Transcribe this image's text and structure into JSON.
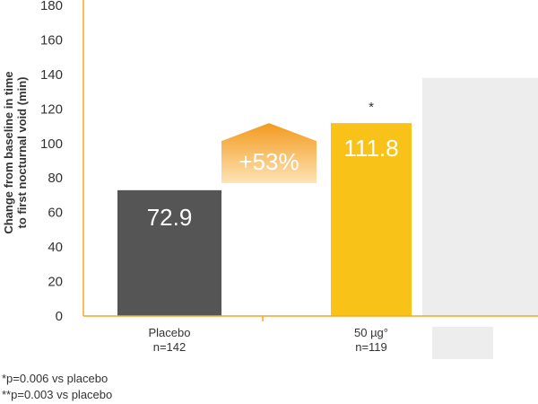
{
  "chart_data": {
    "type": "bar",
    "ylabel": [
      "Change from baseline in time",
      "to first nocturnal void (min)"
    ],
    "ylim": [
      0,
      180
    ],
    "yticks": [
      0,
      20,
      40,
      60,
      80,
      100,
      120,
      140,
      160,
      180
    ],
    "categories": [
      {
        "lines": [
          "Placebo",
          "n=142"
        ]
      },
      {
        "lines": [
          "50 µg°",
          "n=119"
        ]
      },
      {
        "lines": []
      }
    ],
    "values": [
      72.9,
      111.8,
      138
    ],
    "value_labels": [
      "72.9",
      "111.8",
      ""
    ],
    "significance": [
      "",
      "*",
      ""
    ],
    "annotation": {
      "text": "+53%",
      "from": 72.9,
      "to": 111.8
    },
    "colors": {
      "bars": [
        "#555555",
        "#f9c219",
        "#ededed"
      ],
      "axis": "#f5a623",
      "arrow_top": "#f39a1e",
      "arrow_bottom": "#fde3b5"
    }
  },
  "footnotes": [
    "*p=0.006 vs placebo",
    "**p=0.003 vs placebo"
  ]
}
